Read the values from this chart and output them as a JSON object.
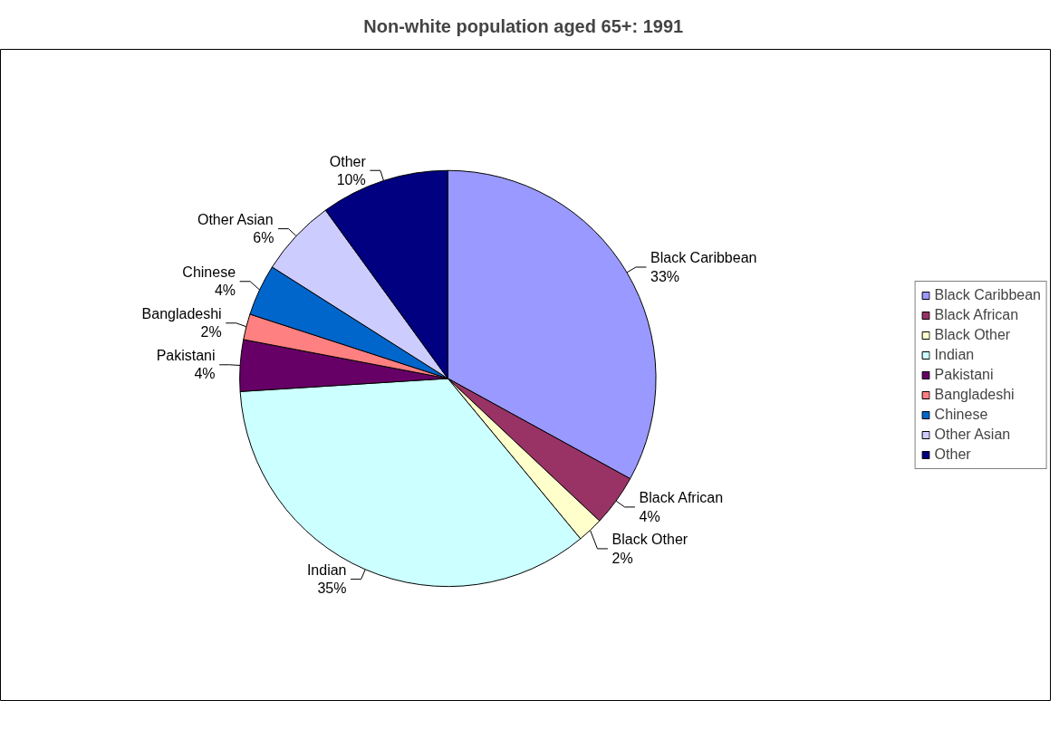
{
  "chart_data": {
    "type": "pie",
    "title": "Non-white population aged 65+:  1991",
    "categories": [
      "Black Caribbean",
      "Black African",
      "Black Other",
      "Indian",
      "Pakistani",
      "Bangladeshi",
      "Chinese",
      "Other Asian",
      "Other"
    ],
    "values": [
      33,
      4,
      2,
      35,
      4,
      2,
      4,
      6,
      10
    ],
    "value_labels": [
      "33%",
      "4%",
      "2%",
      "35%",
      "4%",
      "2%",
      "4%",
      "6%",
      "10%"
    ],
    "colors": [
      "#9999ff",
      "#993366",
      "#ffffcc",
      "#ccffff",
      "#660066",
      "#ff8080",
      "#0066cc",
      "#ccccff",
      "#000080"
    ],
    "legend": "right"
  }
}
